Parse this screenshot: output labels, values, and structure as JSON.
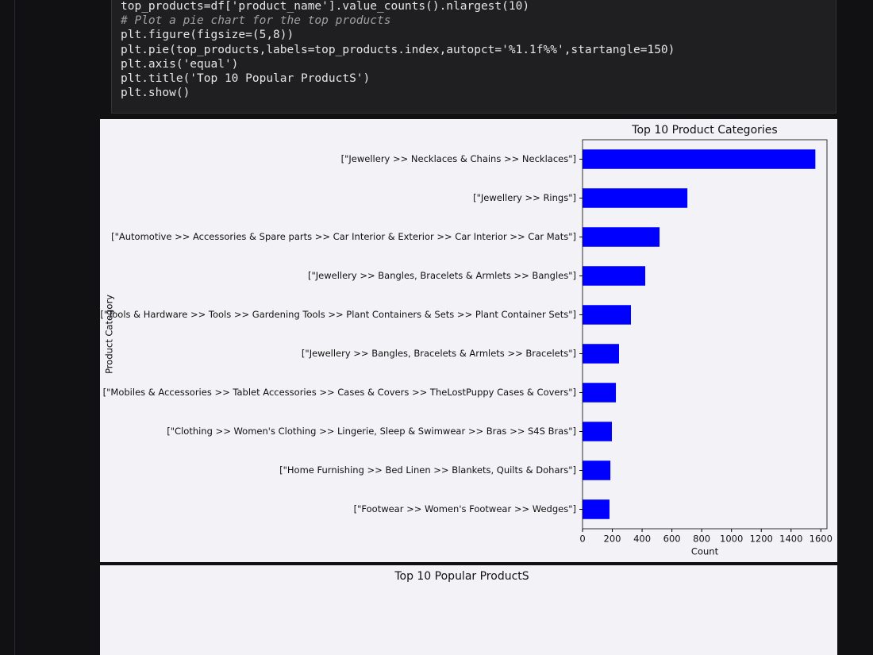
{
  "code": {
    "lines": [
      "top_products=df['product_name'].value_counts().nlargest(10)",
      "# Plot a pie chart for the top products",
      "plt.figure(figsize=(5,8))",
      "plt.pie(top_products,labels=top_products.index,autopct='%1.1f%%',startangle=150)",
      "plt.axis('equal')",
      "plt.title('Top 10 Popular ProductS')",
      "plt.show()"
    ]
  },
  "chart_data": [
    {
      "type": "barh",
      "title": "Top 10 Product Categories",
      "x_label": "Count",
      "y_label": "Product Category",
      "categories": [
        "[\"Jewellery >> Necklaces & Chains >> Necklaces\"]",
        "[\"Jewellery >> Rings\"]",
        "[\"Automotive >> Accessories & Spare parts >> Car Interior & Exterior >> Car Interior >> Car Mats\"]",
        "[\"Jewellery >> Bangles, Bracelets & Armlets >> Bangles\"]",
        "[\"Tools & Hardware >> Tools >> Gardening Tools >> Plant Containers & Sets >> Plant Container Sets\"]",
        "[\"Jewellery >> Bangles, Bracelets & Armlets >> Bracelets\"]",
        "[\"Mobiles & Accessories >> Tablet Accessories >> Cases & Covers >> TheLostPuppy Cases & Covers\"]",
        "[\"Clothing >> Women's Clothing >> Lingerie, Sleep & Swimwear >> Bras >> S4S Bras\"]",
        "[\"Home Furnishing >> Bed Linen >> Blankets, Quilts & Dohars\"]",
        "[\"Footwear >> Women's Footwear >> Wedges\"]"
      ],
      "values": [
        1563,
        704,
        517,
        421,
        325,
        245,
        224,
        197,
        187,
        181
      ],
      "color": "#0000ff",
      "xlim": [
        0,
        1641
      ],
      "xticks": [
        0,
        200,
        400,
        600,
        800,
        1000,
        1200,
        1400,
        1600
      ]
    },
    {
      "type": "pie",
      "title": "Top 10 Popular ProductS"
    }
  ]
}
